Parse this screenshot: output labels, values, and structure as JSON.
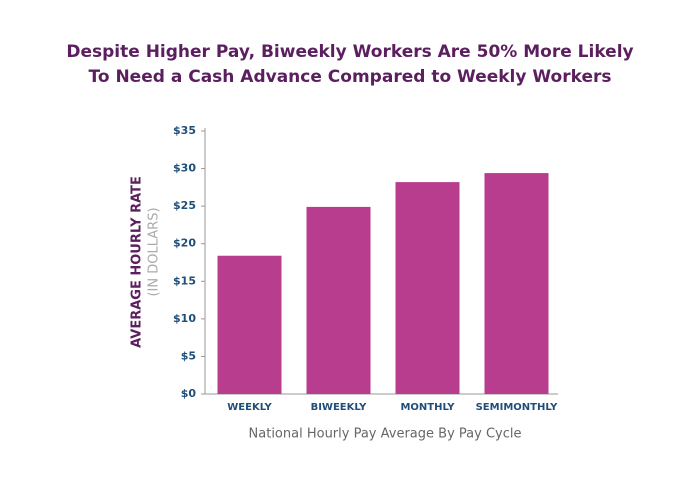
{
  "chart_data": {
    "type": "bar",
    "title": [
      "Despite Higher Pay, Biweekly Workers Are 50% More Likely",
      "To Need a Cash Advance Compared to Weekly Workers"
    ],
    "ylabel": [
      "AVERAGE HOURLY RATE",
      "(IN DOLLARS)"
    ],
    "xlabel": "National Hourly Pay Average By Pay Cycle",
    "categories": [
      "WEEKLY",
      "BIWEEKLY",
      "MONTHLY",
      "SEMIMONTHLY"
    ],
    "values": [
      18.4,
      24.9,
      28.2,
      29.4
    ],
    "color": "#b83d8e",
    "ylim": [
      0,
      35
    ],
    "yticks": [
      {
        "value": 0,
        "label": "$0"
      },
      {
        "value": 5,
        "label": "$5"
      },
      {
        "value": 10,
        "label": "$10"
      },
      {
        "value": 15,
        "label": "$15"
      },
      {
        "value": 20,
        "label": "$20"
      },
      {
        "value": 25,
        "label": "$25"
      },
      {
        "value": 30,
        "label": "$30"
      },
      {
        "value": 35,
        "label": "$35"
      }
    ],
    "grid": false
  }
}
